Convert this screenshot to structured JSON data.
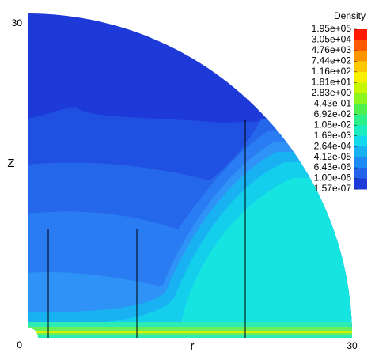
{
  "chart_data": {
    "type": "contour",
    "xlabel": "r",
    "ylabel": "Z",
    "xlim": [
      0,
      30
    ],
    "ylim": [
      0,
      30
    ],
    "xticks": [
      30
    ],
    "yticks": [
      0,
      30
    ],
    "colorbar": {
      "title": "Density",
      "scale": "log",
      "ticks": [
        {
          "value": 195000,
          "label": "1.95e+05"
        },
        {
          "value": 30500,
          "label": "3.05e+04"
        },
        {
          "value": 4760,
          "label": "4.76e+03"
        },
        {
          "value": 744,
          "label": "7.44e+02"
        },
        {
          "value": 116,
          "label": "1.16e+02"
        },
        {
          "value": 18.1,
          "label": "1.81e+01"
        },
        {
          "value": 2.83,
          "label": "2.83e+00"
        },
        {
          "value": 0.443,
          "label": "4.43e-01"
        },
        {
          "value": 0.0692,
          "label": "6.92e-02"
        },
        {
          "value": 0.0108,
          "label": "1.08e-02"
        },
        {
          "value": 0.00169,
          "label": "1.69e-03"
        },
        {
          "value": 0.000264,
          "label": "2.64e-04"
        },
        {
          "value": 4.12e-05,
          "label": "4.12e-05"
        },
        {
          "value": 6.43e-06,
          "label": "6.43e-06"
        },
        {
          "value": 1e-06,
          "label": "1.00e-06"
        },
        {
          "value": 1.57e-07,
          "label": "1.57e-07"
        }
      ],
      "colors": [
        "#ff1a00",
        "#ff5a00",
        "#ff9500",
        "#ffc800",
        "#f7f000",
        "#c8f500",
        "#8cf51e",
        "#4ef050",
        "#2ef08a",
        "#1cecc0",
        "#14d8ec",
        "#18b2f2",
        "#1e8af4",
        "#2263ea",
        "#1d39d8"
      ]
    }
  }
}
